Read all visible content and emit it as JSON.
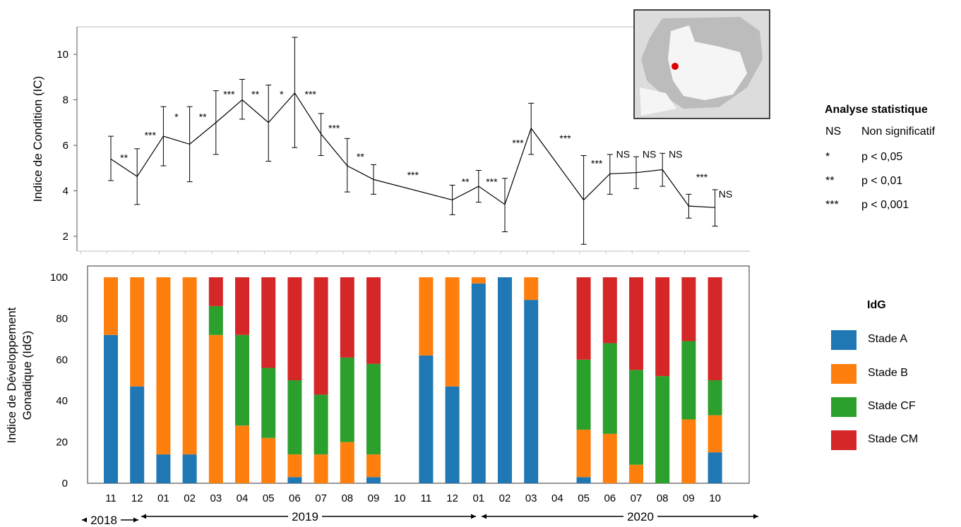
{
  "colors": {
    "stade_a": "#1f77b4",
    "stade_b": "#ff7f0e",
    "stade_cf": "#2ca02c",
    "stade_cm": "#d62728",
    "line": "#000000",
    "site_marker": "#e00000"
  },
  "legend_stats": {
    "title": "Analyse statistique",
    "rows": [
      {
        "symbol": "NS",
        "text": "Non significatif"
      },
      {
        "symbol": "*",
        "text": "p < 0,05"
      },
      {
        "symbol": "**",
        "text": "p < 0,01"
      },
      {
        "symbol": "***",
        "text": "p < 0,001"
      }
    ]
  },
  "legend_idg": {
    "title": "IdG",
    "items": [
      "Stade A",
      "Stade B",
      "Stade CF",
      "Stade CM"
    ]
  },
  "x_axis": {
    "months": [
      "11",
      "12",
      "01",
      "02",
      "03",
      "04",
      "05",
      "06",
      "07",
      "08",
      "09",
      "10",
      "11",
      "12",
      "01",
      "02",
      "03",
      "04",
      "05",
      "06",
      "07",
      "08",
      "09",
      "10"
    ],
    "years": [
      "2018",
      "2019",
      "2020"
    ]
  },
  "map_inset": {
    "description_icon": "map-inset-etang-de-berre"
  },
  "chart_data": [
    {
      "type": "line",
      "ylabel": "Indice de Condition (IC)",
      "ylim": [
        1.2,
        11.2
      ],
      "yticks": [
        2,
        4,
        6,
        8,
        10
      ],
      "x": [
        "11",
        "12",
        "01",
        "02",
        "03",
        "04",
        "05",
        "06",
        "07",
        "08",
        "09",
        "10",
        "11",
        "12",
        "01",
        "02",
        "03",
        "04",
        "05",
        "06",
        "07",
        "08",
        "09",
        "10"
      ],
      "points": [
        {
          "x": 0,
          "y": 5.4,
          "err": [
            4.45,
            6.4
          ]
        },
        {
          "x": 1,
          "y": 4.63,
          "err": [
            3.4,
            5.85
          ]
        },
        {
          "x": 2,
          "y": 6.4,
          "err": [
            5.1,
            7.7
          ]
        },
        {
          "x": 3,
          "y": 6.05,
          "err": [
            4.4,
            7.7
          ]
        },
        {
          "x": 4,
          "y": 7.0,
          "err": [
            5.6,
            8.4
          ]
        },
        {
          "x": 5,
          "y": 8.0,
          "err": [
            7.15,
            8.9
          ]
        },
        {
          "x": 6,
          "y": 7.0,
          "err": [
            5.3,
            8.65
          ]
        },
        {
          "x": 7,
          "y": 8.3,
          "err": [
            5.9,
            10.75
          ]
        },
        {
          "x": 8,
          "y": 6.5,
          "err": [
            5.55,
            7.4
          ]
        },
        {
          "x": 9,
          "y": 5.1,
          "err": [
            3.95,
            6.3
          ]
        },
        {
          "x": 10,
          "y": 4.5,
          "err": [
            3.85,
            5.15
          ]
        },
        {
          "x": 13,
          "y": 3.6,
          "err": [
            2.95,
            4.25
          ]
        },
        {
          "x": 14,
          "y": 4.2,
          "err": [
            3.5,
            4.9
          ]
        },
        {
          "x": 15,
          "y": 3.4,
          "err": [
            2.2,
            4.55
          ]
        },
        {
          "x": 16,
          "y": 6.75,
          "err": [
            5.6,
            7.85
          ]
        },
        {
          "x": 18,
          "y": 3.6,
          "err": [
            1.65,
            5.55
          ]
        },
        {
          "x": 19,
          "y": 4.75,
          "err": [
            3.85,
            5.6
          ]
        },
        {
          "x": 20,
          "y": 4.8,
          "err": [
            4.1,
            5.5
          ]
        },
        {
          "x": 21,
          "y": 4.93,
          "err": [
            4.2,
            5.65
          ]
        },
        {
          "x": 22,
          "y": 3.33,
          "err": [
            2.8,
            3.85
          ]
        },
        {
          "x": 23,
          "y": 3.27,
          "err": [
            2.45,
            4.05
          ]
        }
      ],
      "significance": [
        {
          "x": 0.5,
          "y": 5.3,
          "label": "**"
        },
        {
          "x": 1.5,
          "y": 6.3,
          "label": "***"
        },
        {
          "x": 2.5,
          "y": 7.1,
          "label": "*"
        },
        {
          "x": 3.5,
          "y": 7.1,
          "label": "**"
        },
        {
          "x": 4.5,
          "y": 8.1,
          "label": "***"
        },
        {
          "x": 5.5,
          "y": 8.1,
          "label": "**"
        },
        {
          "x": 6.5,
          "y": 8.1,
          "label": "*"
        },
        {
          "x": 7.6,
          "y": 8.1,
          "label": "***"
        },
        {
          "x": 8.5,
          "y": 6.6,
          "label": "***"
        },
        {
          "x": 9.5,
          "y": 5.35,
          "label": "**"
        },
        {
          "x": 11.5,
          "y": 4.55,
          "label": "***"
        },
        {
          "x": 13.5,
          "y": 4.25,
          "label": "**"
        },
        {
          "x": 14.5,
          "y": 4.25,
          "label": "***"
        },
        {
          "x": 15.5,
          "y": 5.95,
          "label": "***"
        },
        {
          "x": 17.3,
          "y": 6.15,
          "label": "***"
        },
        {
          "x": 18.5,
          "y": 5.05,
          "label": "***"
        },
        {
          "x": 19.5,
          "y": 5.45,
          "label": "NS"
        },
        {
          "x": 20.5,
          "y": 5.45,
          "label": "NS"
        },
        {
          "x": 21.5,
          "y": 5.45,
          "label": "NS"
        },
        {
          "x": 22.5,
          "y": 4.45,
          "label": "***"
        },
        {
          "x": 23.4,
          "y": 3.7,
          "label": "NS"
        }
      ]
    },
    {
      "type": "bar",
      "stacked": true,
      "ylabel": "Indice de Développement Gonadique (IdG)",
      "ylim": [
        0,
        100
      ],
      "yticks": [
        0,
        20,
        40,
        60,
        80,
        100
      ],
      "categories": [
        "11",
        "12",
        "01",
        "02",
        "03",
        "04",
        "05",
        "06",
        "07",
        "08",
        "09",
        "10",
        "11",
        "12",
        "01",
        "02",
        "03",
        "04",
        "05",
        "06",
        "07",
        "08",
        "09",
        "10"
      ],
      "series": [
        {
          "name": "Stade A",
          "values": [
            72,
            47,
            14,
            14,
            0,
            0,
            0,
            3,
            0,
            0,
            3,
            0,
            62,
            47,
            97,
            100,
            89,
            0,
            3,
            0,
            0,
            0,
            0,
            15
          ]
        },
        {
          "name": "Stade B",
          "values": [
            28,
            53,
            86,
            86,
            72,
            28,
            22,
            11,
            14,
            20,
            11,
            0,
            38,
            53,
            3,
            0,
            11,
            0,
            23,
            24,
            9,
            0,
            31,
            18
          ]
        },
        {
          "name": "Stade CF",
          "values": [
            0,
            0,
            0,
            0,
            14,
            44,
            34,
            36,
            29,
            41,
            44,
            0,
            0,
            0,
            0,
            0,
            0,
            0,
            34,
            44,
            46,
            52,
            38,
            17
          ]
        },
        {
          "name": "Stade CM",
          "values": [
            0,
            0,
            0,
            0,
            14,
            28,
            44,
            50,
            57,
            39,
            42,
            0,
            0,
            0,
            0,
            0,
            0,
            0,
            40,
            32,
            45,
            48,
            31,
            50
          ]
        }
      ]
    }
  ]
}
